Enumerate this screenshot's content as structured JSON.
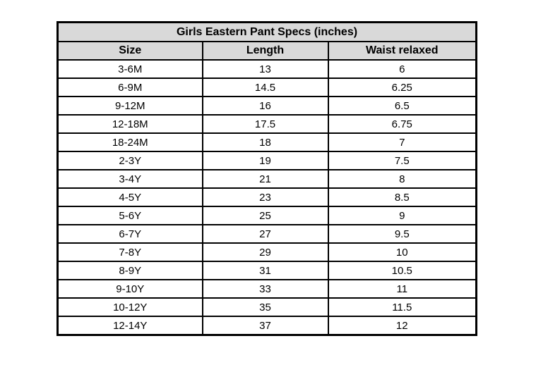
{
  "chart_data": {
    "type": "table",
    "title": "Girls Eastern Pant Specs (inches)",
    "columns": [
      "Size",
      "Length",
      "Waist relaxed"
    ],
    "rows": [
      [
        "3-6M",
        "13",
        "6"
      ],
      [
        "6-9M",
        "14.5",
        "6.25"
      ],
      [
        "9-12M",
        "16",
        "6.5"
      ],
      [
        "12-18M",
        "17.5",
        "6.75"
      ],
      [
        "18-24M",
        "18",
        "7"
      ],
      [
        "2-3Y",
        "19",
        "7.5"
      ],
      [
        "3-4Y",
        "21",
        "8"
      ],
      [
        "4-5Y",
        "23",
        "8.5"
      ],
      [
        "5-6Y",
        "25",
        "9"
      ],
      [
        "6-7Y",
        "27",
        "9.5"
      ],
      [
        "7-8Y",
        "29",
        "10"
      ],
      [
        "8-9Y",
        "31",
        "10.5"
      ],
      [
        "9-10Y",
        "33",
        "11"
      ],
      [
        "10-12Y",
        "35",
        "11.5"
      ],
      [
        "12-14Y",
        "37",
        "12"
      ]
    ],
    "units": "inches"
  },
  "colors": {
    "header_bg": "#d9d9d9",
    "border": "#000000",
    "row_bg": "#ffffff",
    "text": "#000000"
  }
}
